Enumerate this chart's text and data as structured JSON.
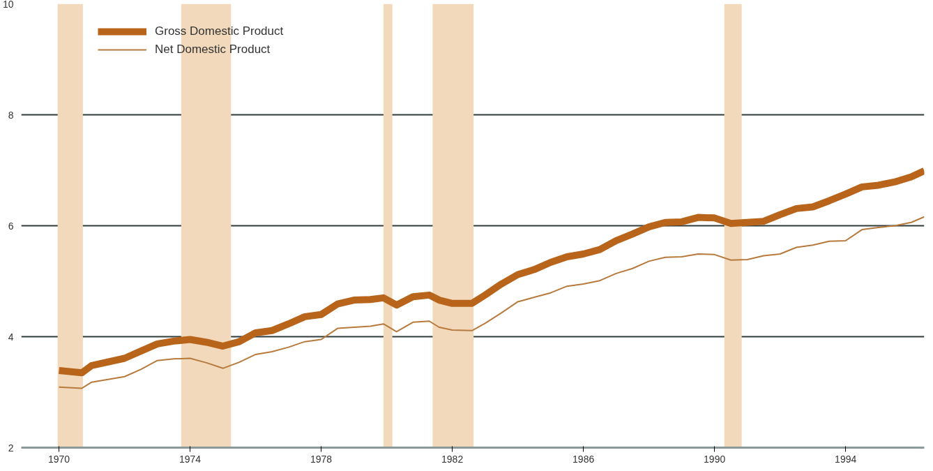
{
  "chart_data": {
    "type": "line",
    "x": [
      1970.0,
      1970.7,
      1971.0,
      1972.0,
      1972.5,
      1973.0,
      1973.5,
      1974.0,
      1974.5,
      1975.0,
      1975.5,
      1976.0,
      1976.5,
      1977.0,
      1977.5,
      1978.0,
      1978.5,
      1979.0,
      1979.5,
      1979.9,
      1980.3,
      1980.8,
      1981.3,
      1981.6,
      1982.0,
      1982.6,
      1983.0,
      1983.5,
      1984.0,
      1984.5,
      1985.0,
      1985.5,
      1986.0,
      1986.5,
      1987.0,
      1987.5,
      1988.0,
      1988.5,
      1989.0,
      1989.5,
      1990.0,
      1990.5,
      1991.0,
      1991.5,
      1992.0,
      1992.5,
      1993.0,
      1993.5,
      1994.0,
      1994.5,
      1995.0,
      1995.5,
      1996.0,
      1996.4
    ],
    "series": [
      {
        "name": "Gross Domestic Product",
        "color": "#b8651b",
        "values": [
          3.39,
          3.35,
          3.48,
          3.61,
          3.74,
          3.87,
          3.92,
          3.95,
          3.9,
          3.83,
          3.91,
          4.07,
          4.11,
          4.23,
          4.36,
          4.4,
          4.59,
          4.66,
          4.67,
          4.7,
          4.57,
          4.72,
          4.75,
          4.66,
          4.6,
          4.6,
          4.75,
          4.95,
          5.12,
          5.21,
          5.34,
          5.44,
          5.49,
          5.57,
          5.73,
          5.85,
          5.98,
          6.06,
          6.07,
          6.15,
          6.14,
          6.04,
          6.06,
          6.08,
          6.2,
          6.31,
          6.34,
          6.45,
          6.57,
          6.7,
          6.73,
          6.79,
          6.88,
          6.99
        ]
      },
      {
        "name": "Net Domestic Product",
        "color": "#b87a3c",
        "values": [
          3.09,
          3.07,
          3.18,
          3.28,
          3.41,
          3.57,
          3.6,
          3.61,
          3.53,
          3.43,
          3.54,
          3.68,
          3.73,
          3.81,
          3.91,
          3.95,
          4.15,
          4.17,
          4.19,
          4.23,
          4.09,
          4.26,
          4.28,
          4.17,
          4.12,
          4.11,
          4.24,
          4.43,
          4.63,
          4.71,
          4.79,
          4.91,
          4.95,
          5.01,
          5.14,
          5.23,
          5.36,
          5.43,
          5.44,
          5.49,
          5.48,
          5.38,
          5.39,
          5.46,
          5.49,
          5.61,
          5.65,
          5.72,
          5.73,
          5.93,
          5.97,
          6.0,
          6.06,
          6.16
        ]
      }
    ],
    "xlim": [
      1968.85,
      1996.4
    ],
    "ylim": [
      2,
      10
    ],
    "xticks": [
      1970,
      1974,
      1978,
      1982,
      1986,
      1990,
      1994
    ],
    "yticks": [
      2,
      4,
      6,
      8,
      10
    ],
    "bands": [
      {
        "axis": "x",
        "from": 1969.96,
        "to": 1970.73,
        "color": "#f2d9bb"
      },
      {
        "axis": "x",
        "from": 1973.73,
        "to": 1975.25,
        "color": "#f2d9bb"
      },
      {
        "axis": "x",
        "from": 1979.9,
        "to": 1980.17,
        "color": "#f2d9bb"
      },
      {
        "axis": "x",
        "from": 1981.4,
        "to": 1982.65,
        "color": "#f2d9bb"
      },
      {
        "axis": "x",
        "from": 1990.3,
        "to": 1990.83,
        "color": "#f2d9bb"
      }
    ],
    "grid": "y",
    "legend": "top left"
  }
}
